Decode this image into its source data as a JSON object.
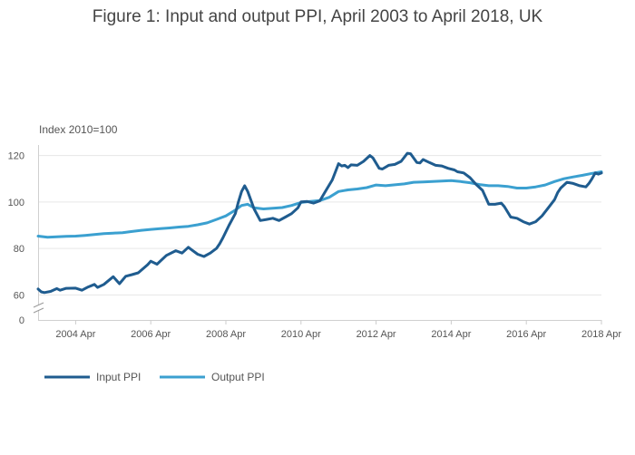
{
  "chart_data": {
    "type": "line",
    "title": "Figure 1: Input and output PPI, April 2003 to April 2018, UK",
    "ylabel": "Index 2010=100",
    "xlabel": "",
    "x_ticks": [
      "2004 Apr",
      "2006 Apr",
      "2008 Apr",
      "2010 Apr",
      "2012 Apr",
      "2014 Apr",
      "2016 Apr",
      "2018 Apr"
    ],
    "y_ticks": [
      "60",
      "80",
      "100",
      "120"
    ],
    "y_zero_label": "0",
    "ylim": [
      57,
      130
    ],
    "y_axis_break": true,
    "xlim": [
      "2003-04",
      "2018-04"
    ],
    "grid": true,
    "legend_position": "bottom-left",
    "series": [
      {
        "name": "Input PPI",
        "color": "#1f5c8f",
        "points": [
          [
            "2003-04",
            62.5
          ],
          [
            "2003-05",
            61.3
          ],
          [
            "2003-06",
            61.0
          ],
          [
            "2003-08",
            61.5
          ],
          [
            "2003-10",
            62.7
          ],
          [
            "2003-11",
            62.0
          ],
          [
            "2004-01",
            62.8
          ],
          [
            "2004-04",
            62.9
          ],
          [
            "2004-06",
            62.0
          ],
          [
            "2004-08",
            63.4
          ],
          [
            "2004-10",
            64.5
          ],
          [
            "2004-11",
            63.2
          ],
          [
            "2005-01",
            64.5
          ],
          [
            "2005-04",
            67.8
          ],
          [
            "2005-06",
            64.8
          ],
          [
            "2005-08",
            68.0
          ],
          [
            "2005-10",
            68.7
          ],
          [
            "2005-12",
            69.5
          ],
          [
            "2006-03",
            73.0
          ],
          [
            "2006-04",
            74.5
          ],
          [
            "2006-06",
            73.2
          ],
          [
            "2006-09",
            77.0
          ],
          [
            "2006-12",
            79.0
          ],
          [
            "2007-02",
            78.0
          ],
          [
            "2007-04",
            80.5
          ],
          [
            "2007-05",
            79.5
          ],
          [
            "2007-07",
            77.5
          ],
          [
            "2007-09",
            76.5
          ],
          [
            "2007-11",
            78.0
          ],
          [
            "2008-01",
            80.0
          ],
          [
            "2008-02",
            82.0
          ],
          [
            "2008-03",
            84.5
          ],
          [
            "2008-05",
            90.0
          ],
          [
            "2008-07",
            95.0
          ],
          [
            "2008-08",
            100.0
          ],
          [
            "2008-09",
            104.5
          ],
          [
            "2008-10",
            107.0
          ],
          [
            "2008-11",
            104.5
          ],
          [
            "2009-01",
            97.0
          ],
          [
            "2009-03",
            92.0
          ],
          [
            "2009-05",
            92.5
          ],
          [
            "2009-07",
            93.0
          ],
          [
            "2009-09",
            92.0
          ],
          [
            "2009-11",
            93.5
          ],
          [
            "2010-01",
            95.0
          ],
          [
            "2010-03",
            97.5
          ],
          [
            "2010-04",
            100.0
          ],
          [
            "2010-06",
            100.2
          ],
          [
            "2010-08",
            99.5
          ],
          [
            "2010-10",
            100.5
          ],
          [
            "2010-12",
            105.0
          ],
          [
            "2011-02",
            109.5
          ],
          [
            "2011-03",
            113.0
          ],
          [
            "2011-04",
            116.5
          ],
          [
            "2011-05",
            115.5
          ],
          [
            "2011-06",
            115.8
          ],
          [
            "2011-07",
            114.8
          ],
          [
            "2011-08",
            116.0
          ],
          [
            "2011-10",
            115.8
          ],
          [
            "2011-12",
            117.5
          ],
          [
            "2012-02",
            120.0
          ],
          [
            "2012-03",
            119.0
          ],
          [
            "2012-05",
            114.5
          ],
          [
            "2012-06",
            114.2
          ],
          [
            "2012-08",
            115.8
          ],
          [
            "2012-10",
            116.2
          ],
          [
            "2012-12",
            117.5
          ],
          [
            "2013-02",
            121.0
          ],
          [
            "2013-03",
            120.8
          ],
          [
            "2013-05",
            117.0
          ],
          [
            "2013-06",
            116.8
          ],
          [
            "2013-07",
            118.3
          ],
          [
            "2013-09",
            117.0
          ],
          [
            "2013-11",
            115.8
          ],
          [
            "2014-01",
            115.5
          ],
          [
            "2014-03",
            114.5
          ],
          [
            "2014-05",
            113.8
          ],
          [
            "2014-06",
            113.0
          ],
          [
            "2014-08",
            112.5
          ],
          [
            "2014-10",
            110.5
          ],
          [
            "2014-12",
            107.5
          ],
          [
            "2015-02",
            105.0
          ],
          [
            "2015-04",
            99.0
          ],
          [
            "2015-06",
            99.0
          ],
          [
            "2015-08",
            99.5
          ],
          [
            "2015-09",
            98.0
          ],
          [
            "2015-11",
            93.5
          ],
          [
            "2016-01",
            93.0
          ],
          [
            "2016-03",
            91.5
          ],
          [
            "2016-05",
            90.5
          ],
          [
            "2016-07",
            91.5
          ],
          [
            "2016-09",
            94.0
          ],
          [
            "2016-11",
            97.5
          ],
          [
            "2017-01",
            101.0
          ],
          [
            "2017-02",
            104.0
          ],
          [
            "2017-03",
            106.0
          ],
          [
            "2017-05",
            108.5
          ],
          [
            "2017-07",
            108.0
          ],
          [
            "2017-09",
            107.0
          ],
          [
            "2017-11",
            106.5
          ],
          [
            "2017-12",
            108.0
          ],
          [
            "2018-01",
            110.0
          ],
          [
            "2018-02",
            112.5
          ],
          [
            "2018-03",
            112.0
          ],
          [
            "2018-04",
            112.5
          ]
        ]
      },
      {
        "name": "Output PPI",
        "color": "#3ba0d0",
        "points": [
          [
            "2003-04",
            85.3
          ],
          [
            "2003-07",
            84.8
          ],
          [
            "2003-10",
            85.0
          ],
          [
            "2004-01",
            85.2
          ],
          [
            "2004-04",
            85.3
          ],
          [
            "2004-07",
            85.6
          ],
          [
            "2004-10",
            86.0
          ],
          [
            "2005-01",
            86.4
          ],
          [
            "2005-04",
            86.6
          ],
          [
            "2005-07",
            86.8
          ],
          [
            "2005-10",
            87.3
          ],
          [
            "2006-01",
            87.8
          ],
          [
            "2006-04",
            88.2
          ],
          [
            "2006-07",
            88.5
          ],
          [
            "2006-10",
            88.8
          ],
          [
            "2007-01",
            89.2
          ],
          [
            "2007-04",
            89.5
          ],
          [
            "2007-07",
            90.2
          ],
          [
            "2007-10",
            91.0
          ],
          [
            "2008-01",
            92.5
          ],
          [
            "2008-04",
            94.0
          ],
          [
            "2008-07",
            96.5
          ],
          [
            "2008-09",
            98.5
          ],
          [
            "2008-11",
            99.0
          ],
          [
            "2009-01",
            97.5
          ],
          [
            "2009-04",
            97.0
          ],
          [
            "2009-07",
            97.3
          ],
          [
            "2009-10",
            97.6
          ],
          [
            "2010-01",
            98.5
          ],
          [
            "2010-04",
            99.8
          ],
          [
            "2010-07",
            100.2
          ],
          [
            "2010-10",
            100.6
          ],
          [
            "2011-01",
            102.0
          ],
          [
            "2011-04",
            104.5
          ],
          [
            "2011-07",
            105.2
          ],
          [
            "2011-10",
            105.6
          ],
          [
            "2012-01",
            106.2
          ],
          [
            "2012-04",
            107.3
          ],
          [
            "2012-07",
            107.0
          ],
          [
            "2012-10",
            107.4
          ],
          [
            "2013-01",
            107.8
          ],
          [
            "2013-04",
            108.5
          ],
          [
            "2013-07",
            108.6
          ],
          [
            "2013-10",
            108.8
          ],
          [
            "2014-01",
            109.0
          ],
          [
            "2014-04",
            109.2
          ],
          [
            "2014-07",
            108.8
          ],
          [
            "2014-10",
            108.3
          ],
          [
            "2015-01",
            107.5
          ],
          [
            "2015-04",
            107.0
          ],
          [
            "2015-07",
            107.0
          ],
          [
            "2015-10",
            106.7
          ],
          [
            "2016-01",
            106.0
          ],
          [
            "2016-04",
            106.0
          ],
          [
            "2016-07",
            106.5
          ],
          [
            "2016-10",
            107.3
          ],
          [
            "2017-01",
            108.8
          ],
          [
            "2017-04",
            110.0
          ],
          [
            "2017-07",
            110.8
          ],
          [
            "2017-10",
            111.5
          ],
          [
            "2018-01",
            112.3
          ],
          [
            "2018-04",
            113.0
          ]
        ]
      }
    ]
  }
}
